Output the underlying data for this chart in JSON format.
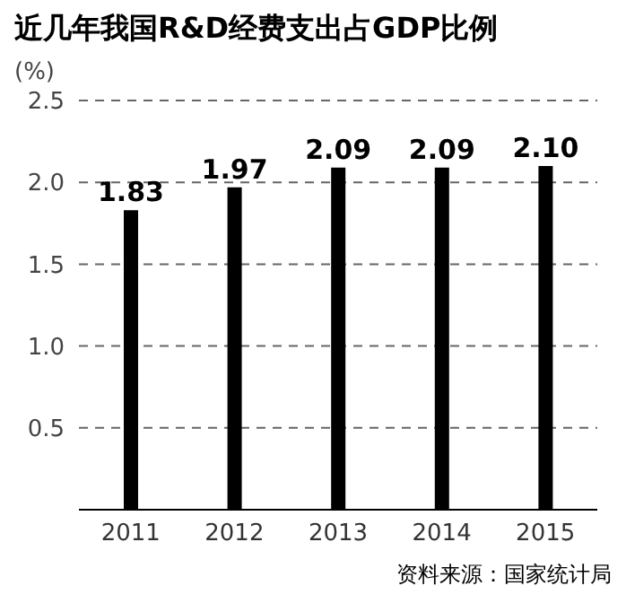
{
  "chart_data": {
    "type": "bar",
    "title": "近几年我国R&D经费支出占GDP比例",
    "ylabel": "(%)",
    "categories": [
      "2011",
      "2012",
      "2013",
      "2014",
      "2015"
    ],
    "values": [
      1.83,
      1.97,
      2.09,
      2.09,
      2.1
    ],
    "color": "#000000",
    "value_labels": [
      "1.83",
      "1.97",
      "2.09",
      "2.09",
      "2.10"
    ],
    "ylim": [
      0,
      2.5
    ],
    "yticks": [
      0.5,
      {
        "value": 1,
        "label": "1.0"
      },
      1.5,
      {
        "value": 2,
        "label": "2.0"
      },
      2.5
    ],
    "grid": "y",
    "annotations": [
      "资料来源：国家统计局"
    ]
  }
}
